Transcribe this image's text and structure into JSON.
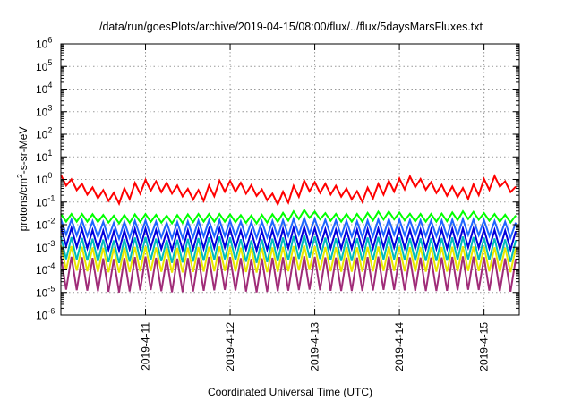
{
  "chart_data": {
    "type": "line",
    "title": "/data/run/goesPlots/archive/2019-04-15/08:00/flux/../flux/5daysMarsFluxes.txt",
    "xlabel": "Coordinated Universal Time (UTC)",
    "ylabel_parts": {
      "pre": "protons/cm",
      "sup": "2",
      "post": "-s-sr-MeV"
    },
    "x_axis": {
      "type": "date",
      "start": "2019-04-10 00:00",
      "end": "2019-04-15 10:00"
    },
    "x_ticks": [
      "2019-4-11",
      "2019-4-12",
      "2019-4-13",
      "2019-4-14",
      "2019-4-15"
    ],
    "y_axis": {
      "scale": "log",
      "min_exp": -6,
      "max_exp": 6
    },
    "y_ticks": [
      {
        "base": "10",
        "exp": "-6"
      },
      {
        "base": "10",
        "exp": "-5"
      },
      {
        "base": "10",
        "exp": "-4"
      },
      {
        "base": "10",
        "exp": "-3"
      },
      {
        "base": "10",
        "exp": "-2"
      },
      {
        "base": "10",
        "exp": "-1"
      },
      {
        "base": "10",
        "exp": "0"
      },
      {
        "base": "10",
        "exp": "1"
      },
      {
        "base": "10",
        "exp": "2"
      },
      {
        "base": "10",
        "exp": "3"
      },
      {
        "base": "10",
        "exp": "4"
      },
      {
        "base": "10",
        "exp": "5"
      },
      {
        "base": "10",
        "exp": "6"
      }
    ],
    "grid": true,
    "legend": "none",
    "series": [
      {
        "color": "#ff0000",
        "baseline": [
          1.6,
          0.5,
          0.25,
          1.0,
          0.7,
          0.3,
          1.0,
          0.6,
          0.2,
          0.9,
          0.6,
          0.3,
          0.8,
          1.4,
          0.6,
          0.4,
          1.6,
          0.4
        ],
        "amp": 3.0
      },
      {
        "color": "#00ff00",
        "baseline": [
          0.03,
          0.03,
          0.025,
          0.03,
          0.025,
          0.03,
          0.03,
          0.025,
          0.03,
          0.045,
          0.03,
          0.03,
          0.04,
          0.03,
          0.03,
          0.04,
          0.03,
          0.025
        ],
        "amp": 2.2
      },
      {
        "color": "#1e64ff",
        "baseline": [
          0.018,
          0.015,
          0.012,
          0.016,
          0.012,
          0.015,
          0.016,
          0.013,
          0.015,
          0.02,
          0.016,
          0.014,
          0.018,
          0.016,
          0.015,
          0.018,
          0.015,
          0.012
        ],
        "amp": 5.0
      },
      {
        "color": "#0000dd",
        "baseline": [
          0.008,
          0.006,
          0.005,
          0.007,
          0.005,
          0.006,
          0.007,
          0.005,
          0.006,
          0.008,
          0.006,
          0.006,
          0.007,
          0.006,
          0.006,
          0.007,
          0.006,
          0.005
        ],
        "amp": 7.0
      },
      {
        "color": "#00bbbb",
        "baseline": [
          0.003,
          0.0025,
          0.002,
          0.003,
          0.002,
          0.0025,
          0.003,
          0.002,
          0.0025,
          0.0035,
          0.0025,
          0.0025,
          0.003,
          0.0025,
          0.0025,
          0.003,
          0.0025,
          0.002
        ],
        "amp": 10.0
      },
      {
        "color": "#e8e800",
        "baseline": [
          0.0012,
          0.001,
          0.0009,
          0.0011,
          0.0009,
          0.001,
          0.0011,
          0.0009,
          0.001,
          0.0012,
          0.001,
          0.001,
          0.0011,
          0.001,
          0.001,
          0.0011,
          0.001,
          0.0009
        ],
        "amp": 12.0
      },
      {
        "color": "#a02c78",
        "baseline": [
          0.0004,
          0.00035,
          0.0003,
          0.0004,
          0.0003,
          0.00035,
          0.0004,
          0.0003,
          0.00035,
          0.0004,
          0.00035,
          0.00035,
          0.0004,
          0.00035,
          0.00035,
          0.0004,
          0.00035,
          0.0003
        ],
        "amp": 30.0
      }
    ]
  }
}
